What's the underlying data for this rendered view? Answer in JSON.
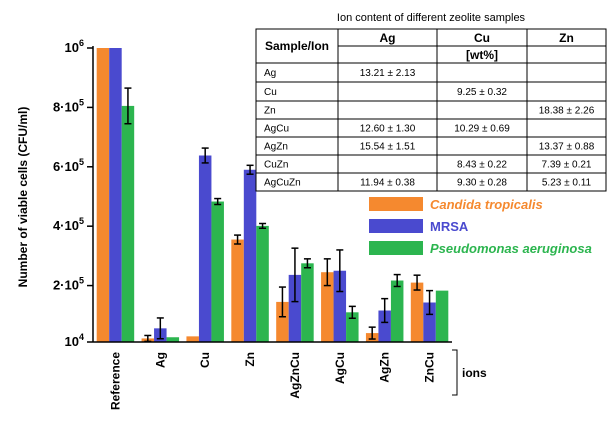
{
  "chart_data": {
    "type": "bar",
    "ylabel": "Number of viable cells  (CFU/ml)",
    "x_group_label": "ions",
    "y_ticks": [
      {
        "value": 10000,
        "base": "10",
        "exp": "4",
        "label": "10"
      },
      {
        "value": 200000,
        "base": "2·10",
        "exp": "5"
      },
      {
        "value": 400000,
        "base": "4·10",
        "exp": "5"
      },
      {
        "value": 600000,
        "base": "6·10",
        "exp": "5"
      },
      {
        "value": 800000,
        "base": "8·10",
        "exp": "5"
      },
      {
        "value": 1000000,
        "base": "10",
        "exp": "6"
      }
    ],
    "ylim": [
      10000,
      1000000
    ],
    "categories": [
      "Reference",
      "Ag",
      "Cu",
      "Zn",
      "AgZnCu",
      "AgCu",
      "AgZn",
      "ZnCu"
    ],
    "series": [
      {
        "name": "Candida tropicalis",
        "color": "#f5892f",
        "italic": true,
        "values": [
          1000000,
          22000,
          29000,
          355000,
          145000,
          245000,
          40000,
          210000
        ],
        "errors": [
          0,
          10000,
          0,
          15000,
          50000,
          45000,
          20000,
          25000
        ]
      },
      {
        "name": "MRSA",
        "color": "#4a4acf",
        "italic": false,
        "values": [
          1000000,
          56000,
          638000,
          590000,
          236000,
          250000,
          116000,
          143000
        ],
        "errors": [
          0,
          35000,
          25000,
          15000,
          90000,
          70000,
          40000,
          40000
        ]
      },
      {
        "name": "Pseudomonas aeruginosa",
        "color": "#2cb54f",
        "italic": true,
        "values": [
          805000,
          26000,
          483000,
          401000,
          275000,
          110000,
          217000,
          183000
        ],
        "errors": [
          60000,
          0,
          10000,
          8000,
          15000,
          20000,
          20000,
          0
        ]
      }
    ]
  },
  "table": {
    "title": "Ion content of different zeolite samples",
    "headers": [
      "Sample/Ion",
      "Ag",
      "Cu",
      "Zn"
    ],
    "unit": "[wt%]",
    "rows": [
      {
        "sample": "Ag",
        "ag": "13.21 ± 2.13",
        "cu": "",
        "zn": ""
      },
      {
        "sample": "Cu",
        "ag": "",
        "cu": "9.25 ± 0.32",
        "zn": ""
      },
      {
        "sample": "Zn",
        "ag": "",
        "cu": "",
        "zn": "18.38 ± 2.26"
      },
      {
        "sample": "AgCu",
        "ag": "12.60 ± 1.30",
        "cu": "10.29 ± 0.69",
        "zn": ""
      },
      {
        "sample": "AgZn",
        "ag": "15.54 ± 1.51",
        "cu": "",
        "zn": "13.37 ± 0.88"
      },
      {
        "sample": "CuZn",
        "ag": "",
        "cu": "8.43 ± 0.22",
        "zn": "7.39 ± 0.21"
      },
      {
        "sample": "AgCuZn",
        "ag": "11.94 ± 0.38",
        "cu": "9.30 ± 0.28",
        "zn": "5.23 ± 0.11"
      }
    ]
  }
}
